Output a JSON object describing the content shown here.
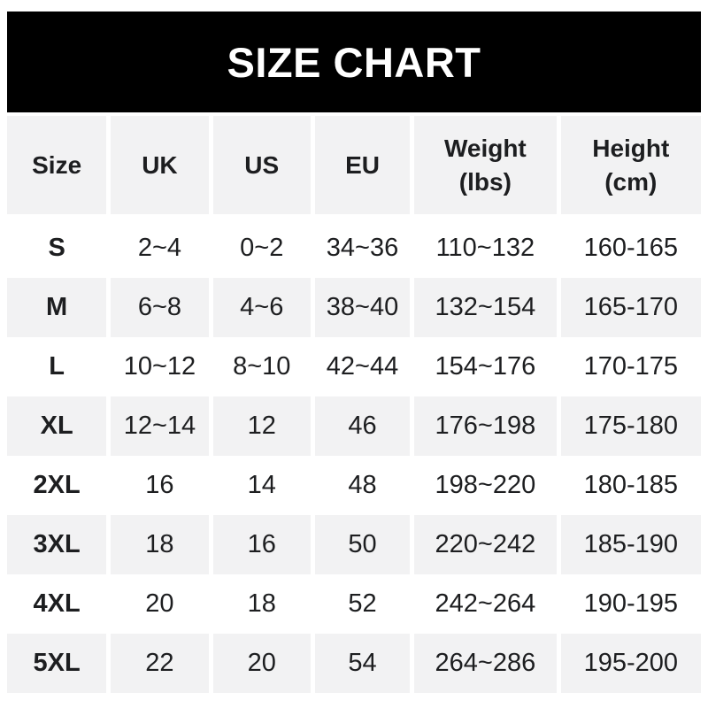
{
  "title": "SIZE CHART",
  "colors": {
    "banner_bg": "#000000",
    "banner_text": "#ffffff",
    "stripe_bg": "#f2f2f3",
    "row_bg": "#ffffff",
    "text": "#1d1e20"
  },
  "table": {
    "headers": {
      "size": "Size",
      "uk": "UK",
      "us": "US",
      "eu": "EU",
      "weight": "Weight\n(lbs)",
      "height": "Height\n(cm)"
    },
    "rows": [
      {
        "size": "S",
        "uk": "2~4",
        "us": "0~2",
        "eu": "34~36",
        "weight": "110~132",
        "height": "160-165"
      },
      {
        "size": "M",
        "uk": "6~8",
        "us": "4~6",
        "eu": "38~40",
        "weight": "132~154",
        "height": "165-170"
      },
      {
        "size": "L",
        "uk": "10~12",
        "us": "8~10",
        "eu": "42~44",
        "weight": "154~176",
        "height": "170-175"
      },
      {
        "size": "XL",
        "uk": "12~14",
        "us": "12",
        "eu": "46",
        "weight": "176~198",
        "height": "175-180"
      },
      {
        "size": "2XL",
        "uk": "16",
        "us": "14",
        "eu": "48",
        "weight": "198~220",
        "height": "180-185"
      },
      {
        "size": "3XL",
        "uk": "18",
        "us": "16",
        "eu": "50",
        "weight": "220~242",
        "height": "185-190"
      },
      {
        "size": "4XL",
        "uk": "20",
        "us": "18",
        "eu": "52",
        "weight": "242~264",
        "height": "190-195"
      },
      {
        "size": "5XL",
        "uk": "22",
        "us": "20",
        "eu": "54",
        "weight": "264~286",
        "height": "195-200"
      }
    ]
  },
  "chart_data": {
    "type": "table",
    "title": "SIZE CHART",
    "columns": [
      "Size",
      "UK",
      "US",
      "EU",
      "Weight (lbs)",
      "Height (cm)"
    ],
    "rows": [
      [
        "S",
        "2~4",
        "0~2",
        "34~36",
        "110~132",
        "160-165"
      ],
      [
        "M",
        "6~8",
        "4~6",
        "38~40",
        "132~154",
        "165-170"
      ],
      [
        "L",
        "10~12",
        "8~10",
        "42~44",
        "154~176",
        "170-175"
      ],
      [
        "XL",
        "12~14",
        "12",
        "46",
        "176~198",
        "175-180"
      ],
      [
        "2XL",
        "16",
        "14",
        "48",
        "198~220",
        "180-185"
      ],
      [
        "3XL",
        "18",
        "16",
        "50",
        "220~242",
        "185-190"
      ],
      [
        "4XL",
        "20",
        "18",
        "52",
        "242~264",
        "190-195"
      ],
      [
        "5XL",
        "22",
        "20",
        "54",
        "264~286",
        "195-200"
      ]
    ],
    "layout": {
      "header_background": "#f2f2f3",
      "stripe_rows": [
        "M",
        "XL",
        "3XL",
        "5XL"
      ],
      "stripe_background": "#f2f2f3",
      "units": {
        "weight": "lbs",
        "height": "cm"
      }
    }
  }
}
